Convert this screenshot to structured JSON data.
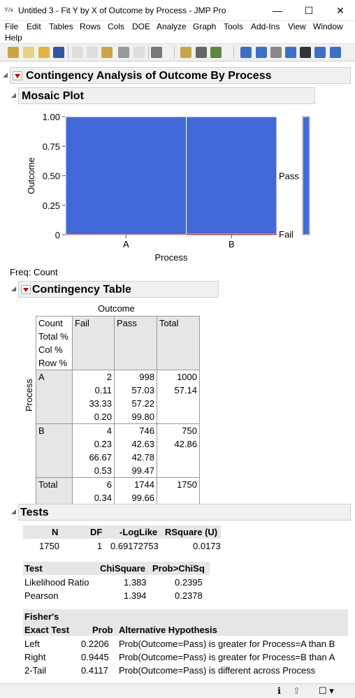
{
  "window": {
    "title": "Untitled 3 - Fit Y by X of Outcome by Process - JMP Pro",
    "minimize": "—",
    "maximize": "☐",
    "close": "✕",
    "icon_text": "Y/x"
  },
  "menu": [
    "File",
    "Edit",
    "Tables",
    "Rows",
    "Cols",
    "DOE",
    "Analyze",
    "Graph",
    "Tools",
    "Add-Ins",
    "View",
    "Window",
    "Help"
  ],
  "report": {
    "title": "Contingency Analysis of Outcome By Process",
    "mosaic_title": "Mosaic Plot",
    "freq": "Freq: Count",
    "contingency_title": "Contingency Table",
    "tests_title": "Tests"
  },
  "chart_data": {
    "type": "mosaic",
    "xlabel": "Process",
    "ylabel": "Outcome",
    "categories": [
      "A",
      "B"
    ],
    "x_widths": [
      0.5714,
      0.4286
    ],
    "y_ticks": [
      "1.00",
      "0.75",
      "0.50",
      "0.25",
      "0"
    ],
    "series": [
      {
        "name": "Pass",
        "values": [
          0.998,
          0.9947
        ]
      },
      {
        "name": "Fail",
        "values": [
          0.002,
          0.0053
        ]
      }
    ],
    "right_labels": [
      "Pass",
      "Fail"
    ],
    "colors": {
      "pass": "#4169d8",
      "fail": "#cc2020"
    }
  },
  "contingency": {
    "col_header": "Outcome",
    "row_header": "Process",
    "stat_labels": [
      "Count",
      "Total %",
      "Col %",
      "Row %"
    ],
    "columns": [
      "Fail",
      "Pass",
      "Total"
    ],
    "rows": [
      {
        "label": "A",
        "fail": [
          "2",
          "0.11",
          "33.33",
          "0.20"
        ],
        "pass": [
          "998",
          "57.03",
          "57.22",
          "99.80"
        ],
        "total": [
          "1000",
          "57.14"
        ]
      },
      {
        "label": "B",
        "fail": [
          "4",
          "0.23",
          "66.67",
          "0.53"
        ],
        "pass": [
          "746",
          "42.63",
          "42.78",
          "99.47"
        ],
        "total": [
          "750",
          "42.86"
        ]
      }
    ],
    "total": {
      "label": "Total",
      "fail": [
        "6",
        "0.34"
      ],
      "pass": [
        "1744",
        "99.66"
      ],
      "total": [
        "1750"
      ]
    }
  },
  "tests": {
    "summary_headers": [
      "N",
      "DF",
      "-LogLike",
      "RSquare (U)"
    ],
    "summary_values": [
      "1750",
      "1",
      "0.69172753",
      "0.0173"
    ],
    "chisq_headers": [
      "Test",
      "ChiSquare",
      "Prob>ChiSq"
    ],
    "chisq_rows": [
      [
        "Likelihood Ratio",
        "1.383",
        "0.2395"
      ],
      [
        "Pearson",
        "1.394",
        "0.2378"
      ]
    ],
    "fisher_headers": [
      "Fisher's",
      "Exact Test",
      "Prob",
      "Alternative Hypothesis"
    ],
    "fisher_rows": [
      [
        "Left",
        "0.2206",
        "Prob(Outcome=Pass) is greater for Process=A than B"
      ],
      [
        "Right",
        "0.9445",
        "Prob(Outcome=Pass) is greater for Process=B than A"
      ],
      [
        "2-Tail",
        "0.4117",
        "Prob(Outcome=Pass) is different across Process"
      ]
    ]
  },
  "statusbar": {
    "info": "ℹ",
    "nav": "⇧",
    "window": "☐ ▾"
  }
}
